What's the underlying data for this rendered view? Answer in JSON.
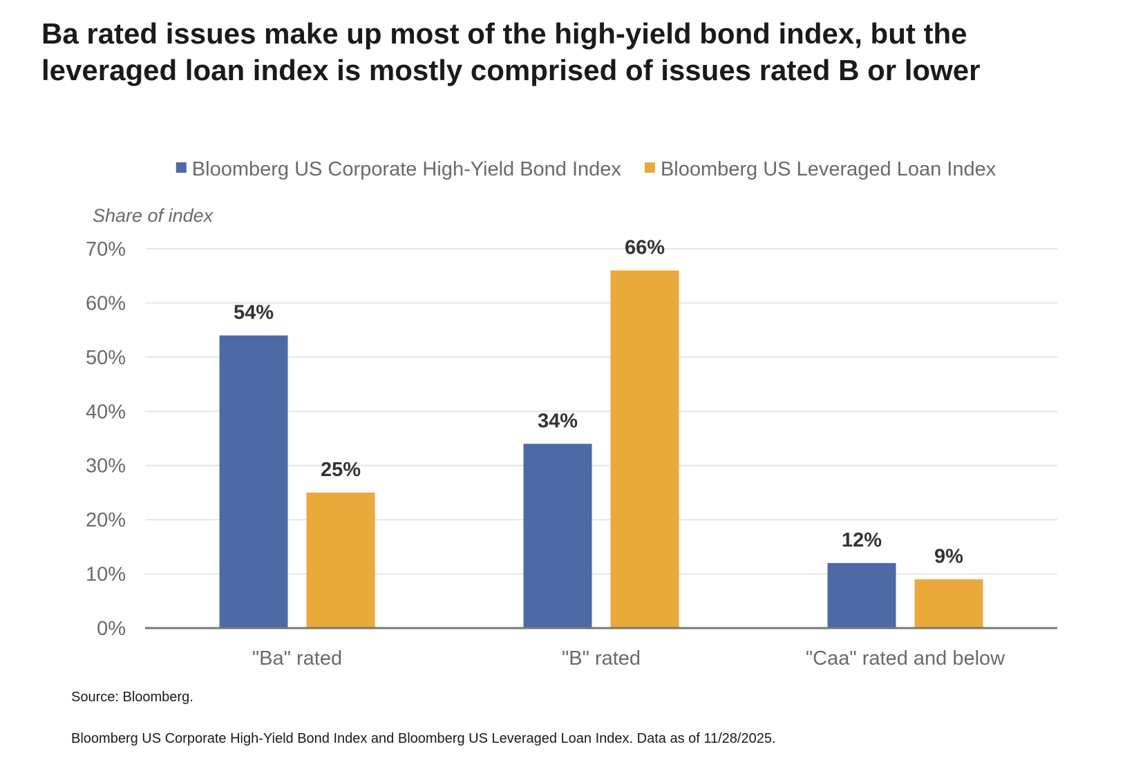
{
  "headline": {
    "line1": "Ba rated issues make up most of the high-yield bond index, but the",
    "line2": "leveraged loan index is mostly comprised of issues rated B or lower"
  },
  "chart_data": {
    "type": "bar",
    "title": "",
    "ylabel": "Share of index",
    "xlabel": "",
    "categories": [
      "\"Ba\" rated",
      "\"B\" rated",
      "\"Caa\" rated and below"
    ],
    "series": [
      {
        "name": "Bloomberg US Corporate High-Yield Bond Index",
        "color": "#4d6aa6",
        "values": [
          54,
          34,
          12
        ],
        "labels": [
          "54%",
          "34%",
          "12%"
        ]
      },
      {
        "name": "Bloomberg US Leveraged Loan Index",
        "color": "#eaa93a",
        "values": [
          25,
          66,
          9
        ],
        "labels": [
          "25%",
          "66%",
          "9%"
        ]
      }
    ],
    "ylim": [
      0,
      70
    ],
    "yticks": [
      0,
      10,
      20,
      30,
      40,
      50,
      60,
      70
    ],
    "ytick_labels": [
      "0%",
      "10%",
      "20%",
      "30%",
      "40%",
      "50%",
      "60%",
      "70%"
    ],
    "grid": true,
    "legend_position": "top"
  },
  "source": "Source: Bloomberg.",
  "footnote": "Bloomberg US Corporate High-Yield Bond Index and Bloomberg US Leveraged Loan Index. Data as of 11/28/2025."
}
